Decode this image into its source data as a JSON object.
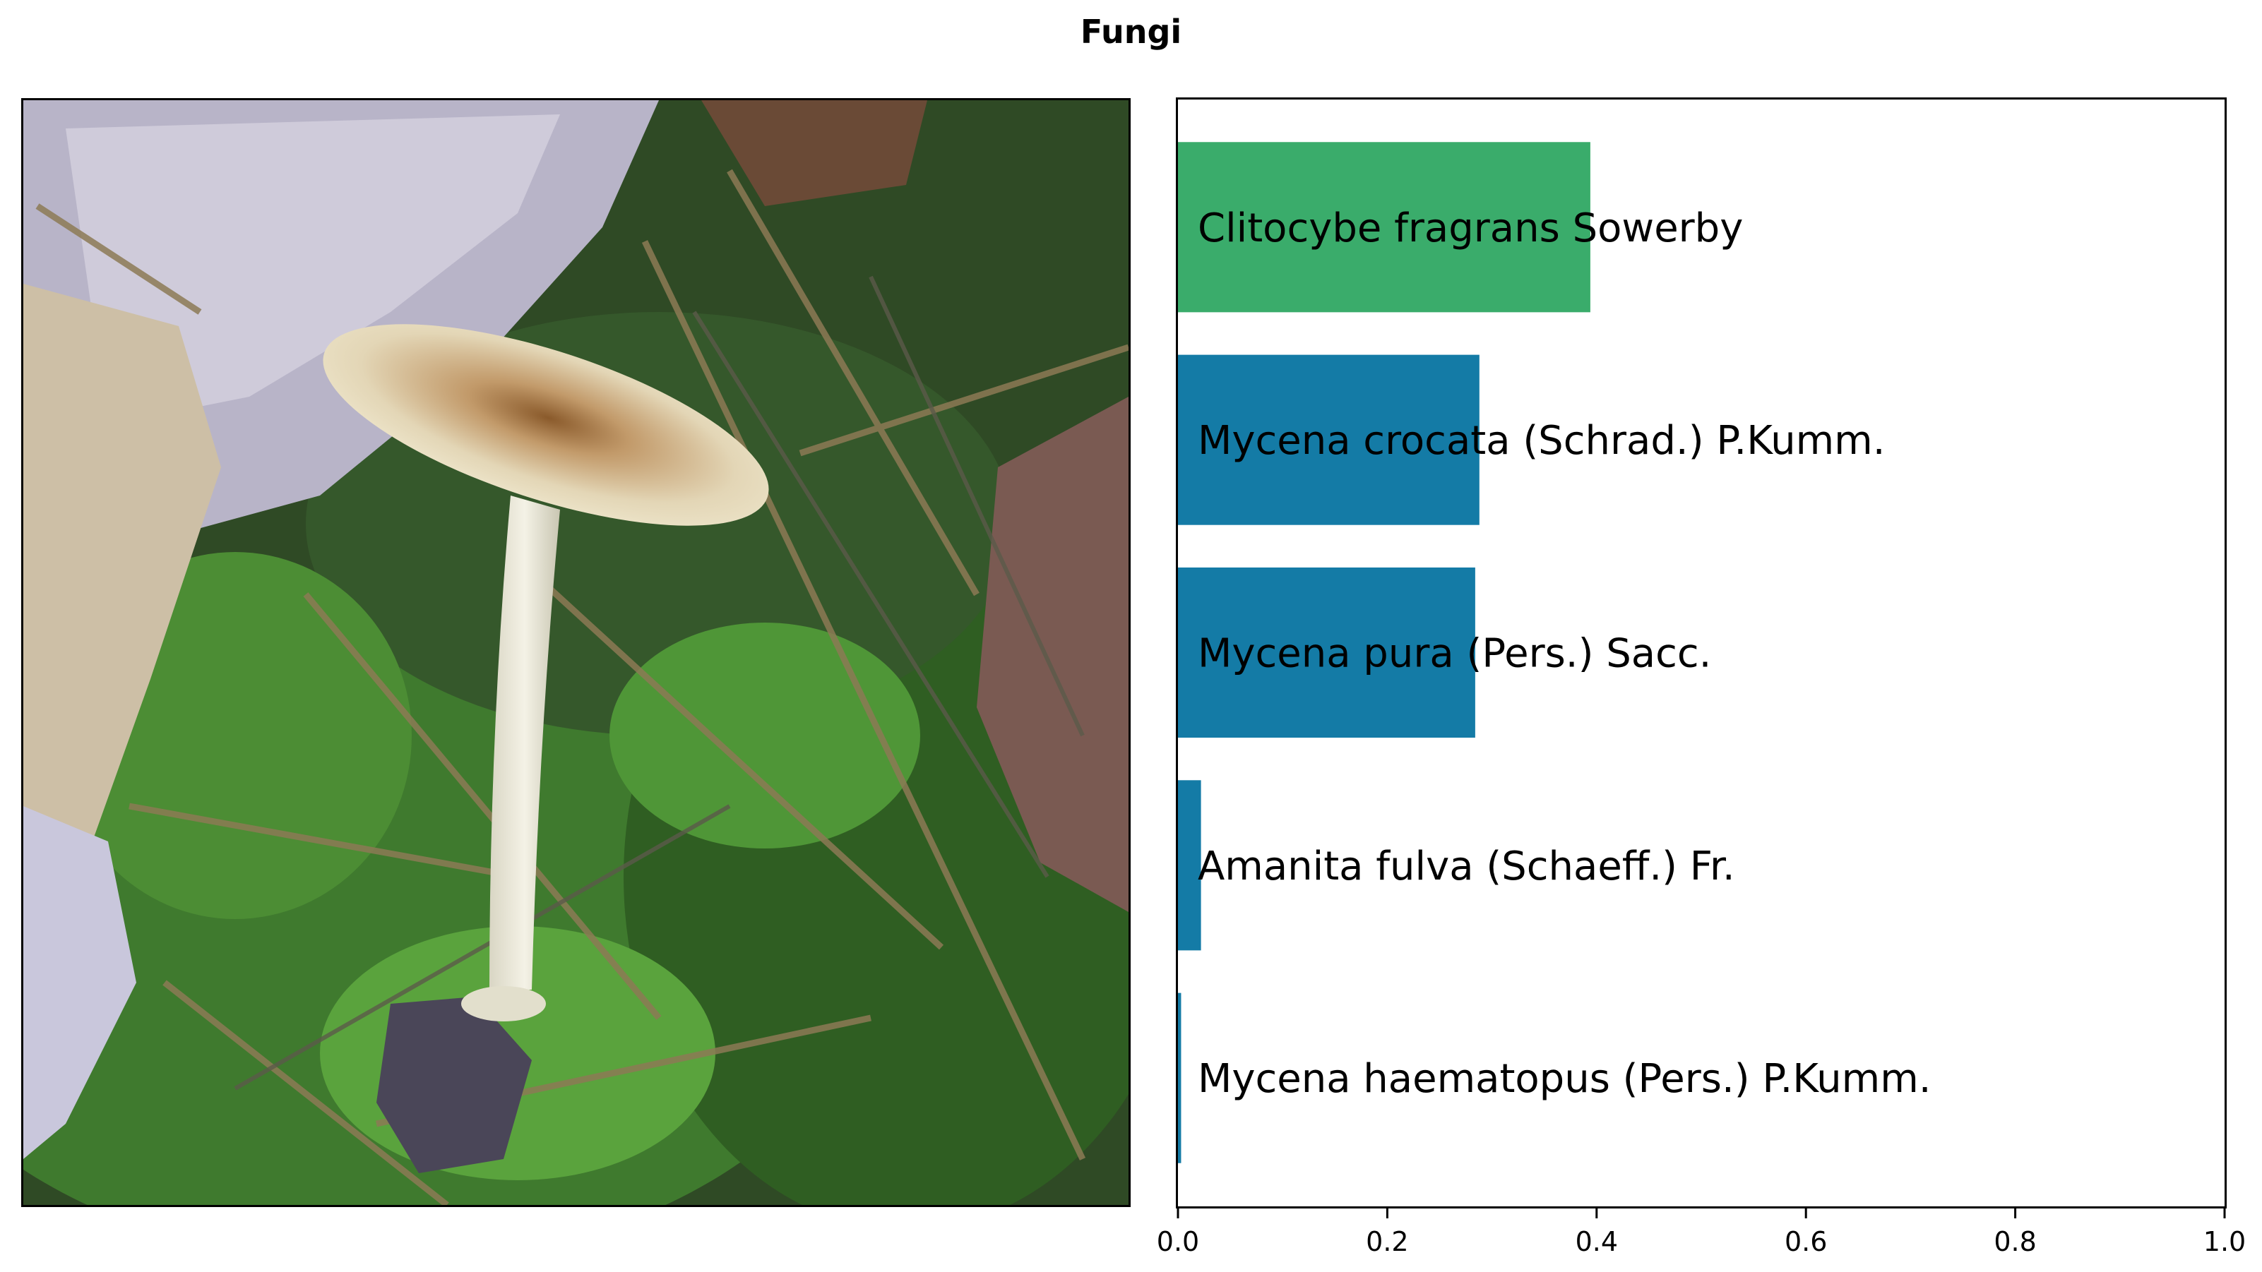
{
  "figure": {
    "title": "Fungi"
  },
  "photo": {
    "subject": "mushroom-photo"
  },
  "chart_data": {
    "type": "bar",
    "orientation": "horizontal",
    "title": "",
    "xlabel": "",
    "ylabel": "",
    "xlim": [
      0,
      1.0
    ],
    "categories": [
      "Clitocybe fragrans Sowerby",
      "Mycena crocata (Schrad.) P.Kumm.",
      "Mycena pura (Pers.) Sacc.",
      "Amanita fulva (Schaeff.) Fr.",
      "Mycena haematopus (Pers.) P.Kumm."
    ],
    "values": [
      0.394,
      0.288,
      0.284,
      0.022,
      0.003
    ],
    "bar_colors": [
      "#3aac6b",
      "#147ba6",
      "#147ba6",
      "#147ba6",
      "#147ba6"
    ],
    "xticks": [
      "0.0",
      "0.2",
      "0.4",
      "0.6",
      "0.8",
      "1.0"
    ],
    "tick_values": [
      0,
      0.2,
      0.4,
      0.6,
      0.8,
      1.0
    ],
    "grid": false,
    "legend": "none"
  }
}
